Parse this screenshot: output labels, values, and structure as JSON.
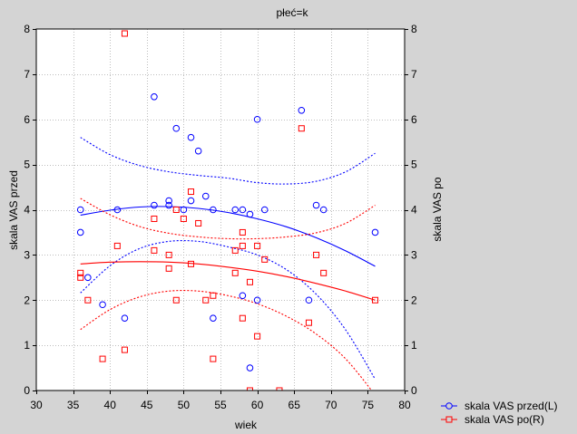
{
  "chart_data": {
    "type": "scatter",
    "title": "płeć=k",
    "xlabel": "wiek",
    "ylabel_left": "skala VAS przed",
    "ylabel_right": "skala VAS po",
    "xlim": [
      30,
      80
    ],
    "ylim_left": [
      0,
      8
    ],
    "ylim_right": [
      0,
      8
    ],
    "x_ticks": [
      30,
      35,
      40,
      45,
      50,
      55,
      60,
      65,
      70,
      75,
      80
    ],
    "y_ticks_left": [
      0,
      1,
      2,
      3,
      4,
      5,
      6,
      7,
      8
    ],
    "y_ticks_right": [
      0,
      1,
      2,
      3,
      4,
      5,
      6,
      7,
      8
    ],
    "grid": true,
    "legend": "bottom-right",
    "series": [
      {
        "name": "skala VAS przed(L)",
        "color": "#0000ff",
        "x": [
          36,
          36,
          37,
          39,
          41,
          42,
          46,
          46,
          48,
          48,
          49,
          50,
          51,
          51,
          52,
          53,
          54,
          54,
          57,
          58,
          58,
          59,
          59,
          60,
          60,
          61,
          66,
          67,
          68,
          69,
          76
        ],
        "y": [
          4.0,
          3.5,
          2.5,
          1.9,
          4.0,
          1.6,
          6.5,
          4.1,
          4.2,
          4.1,
          5.8,
          4.0,
          5.6,
          4.2,
          5.3,
          4.3,
          4.0,
          1.6,
          4.0,
          4.0,
          2.1,
          3.9,
          0.5,
          6.0,
          2.0,
          4.0,
          6.2,
          2.0,
          4.1,
          4.0,
          3.5
        ],
        "fit": {
          "x": [
            36,
            40,
            44,
            48,
            52,
            56,
            60,
            64,
            68,
            72,
            76
          ],
          "y": [
            3.88,
            3.99,
            4.06,
            4.07,
            4.03,
            3.94,
            3.8,
            3.62,
            3.38,
            3.09,
            2.75
          ],
          "ci_upper": [
            5.6,
            5.22,
            4.98,
            4.84,
            4.76,
            4.7,
            4.6,
            4.57,
            4.63,
            4.84,
            5.25
          ],
          "ci_lower": [
            2.16,
            2.76,
            3.14,
            3.3,
            3.3,
            3.18,
            3.0,
            2.67,
            2.13,
            1.34,
            0.25
          ]
        }
      },
      {
        "name": "skala VAS po(R)",
        "color": "#ff0000",
        "x": [
          36,
          36,
          37,
          39,
          41,
          42,
          42,
          46,
          46,
          48,
          48,
          49,
          49,
          50,
          51,
          51,
          52,
          53,
          54,
          54,
          57,
          57,
          58,
          58,
          58,
          59,
          59,
          60,
          60,
          61,
          63,
          66,
          67,
          68,
          69,
          76
        ],
        "y": [
          2.6,
          2.5,
          2.0,
          0.7,
          3.2,
          7.9,
          0.9,
          3.8,
          3.1,
          3.0,
          2.7,
          4.0,
          2.0,
          3.8,
          4.4,
          2.8,
          3.7,
          2.0,
          2.1,
          0.7,
          3.1,
          2.6,
          3.5,
          3.2,
          1.6,
          2.4,
          0.0,
          3.2,
          1.2,
          2.9,
          0.0,
          5.8,
          1.5,
          3.0,
          2.6,
          2.0
        ],
        "fit": {
          "x": [
            36,
            40,
            44,
            48,
            52,
            56,
            60,
            64,
            68,
            72,
            76
          ],
          "y": [
            2.8,
            2.84,
            2.85,
            2.84,
            2.8,
            2.73,
            2.64,
            2.52,
            2.37,
            2.2,
            2.0
          ],
          "ci_upper": [
            4.25,
            3.89,
            3.63,
            3.48,
            3.4,
            3.36,
            3.36,
            3.4,
            3.49,
            3.7,
            4.1
          ],
          "ci_lower": [
            1.35,
            1.79,
            2.07,
            2.2,
            2.2,
            2.1,
            1.92,
            1.64,
            1.25,
            0.7,
            -0.1
          ]
        }
      }
    ]
  }
}
